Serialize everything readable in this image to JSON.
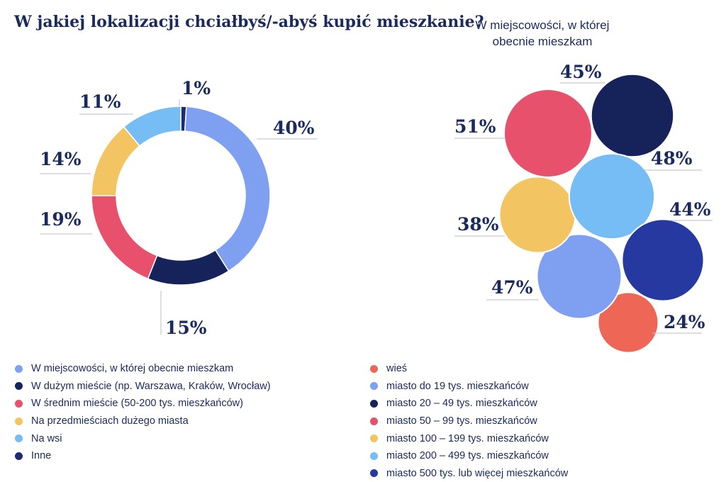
{
  "title": "W jakiej lokalizacji chciałbyś/-abyś kupić mieszkanie?",
  "bubble_title": [
    "W miejscowości, w której",
    "obecnie mieszkam"
  ],
  "chart_data": [
    {
      "type": "pie",
      "title": "W jakiej lokalizacji chciałbyś/-abyś kupić mieszkanie?",
      "categories": [
        "Inne",
        "W miejscowości, w której obecnie mieszkam",
        "W dużym mieście (np. Warszawa, Kraków, Wrocław)",
        "W średnim mieście (50-200 tys. mieszkańców)",
        "Na przedmieściach dużego miasta",
        "Na wsi"
      ],
      "values": [
        1,
        40,
        15,
        19,
        14,
        11
      ],
      "labels": [
        "1%",
        "40%",
        "15%",
        "19%",
        "14%",
        "11%"
      ],
      "colors": [
        "#1e2a78",
        "#7f9ff0",
        "#16225a",
        "#e8516b",
        "#f2c462",
        "#75bdf4"
      ],
      "legend": "bottom"
    },
    {
      "type": "bubble",
      "title": "W miejscowości, w której obecnie mieszkam",
      "categories": [
        "wieś",
        "miasto do 19 tys. mieszkańców",
        "miasto 20 – 49 tys. mieszkańców",
        "miasto 50 – 99 tys. mieszkańców",
        "miasto 100 – 199 tys. mieszkańców",
        "miasto 200 – 499 tys. mieszkańców",
        "miasto 500 tys. lub więcej mieszkańców"
      ],
      "values": [
        24,
        47,
        45,
        51,
        38,
        48,
        44
      ],
      "labels": [
        "24%",
        "47%",
        "45%",
        "51%",
        "38%",
        "48%",
        "44%"
      ],
      "colors": [
        "#ee6656",
        "#7f9ff0",
        "#16225a",
        "#e8516b",
        "#f2c462",
        "#75bdf4",
        "#2639a0"
      ],
      "legend": "bottom"
    }
  ],
  "legend_left": [
    {
      "label": "W miejscowości, w której obecnie mieszkam",
      "color": "#7f9ff0"
    },
    {
      "label": "W dużym mieście (np. Warszawa, Kraków, Wrocław)",
      "color": "#16225a"
    },
    {
      "label": "W średnim mieście (50-200 tys. mieszkańców)",
      "color": "#e8516b"
    },
    {
      "label": "Na przedmieściach dużego miasta",
      "color": "#f2c462"
    },
    {
      "label": "Na wsi",
      "color": "#75bdf4"
    },
    {
      "label": "Inne",
      "color": "#1e2a78"
    }
  ],
  "legend_right": [
    {
      "label": "wieś",
      "color": "#ee6656"
    },
    {
      "label": "miasto do 19 tys. mieszkańców",
      "color": "#7f9ff0"
    },
    {
      "label": "miasto 20 – 49 tys. mieszkańców",
      "color": "#16225a"
    },
    {
      "label": "miasto 50 – 99 tys. mieszkańców",
      "color": "#e8516b"
    },
    {
      "label": "miasto 100 – 199 tys. mieszkańców",
      "color": "#f2c462"
    },
    {
      "label": "miasto 200 – 499 tys. mieszkańców",
      "color": "#75bdf4"
    },
    {
      "label": "miasto 500 tys. lub więcej mieszkańców",
      "color": "#2639a0"
    }
  ]
}
